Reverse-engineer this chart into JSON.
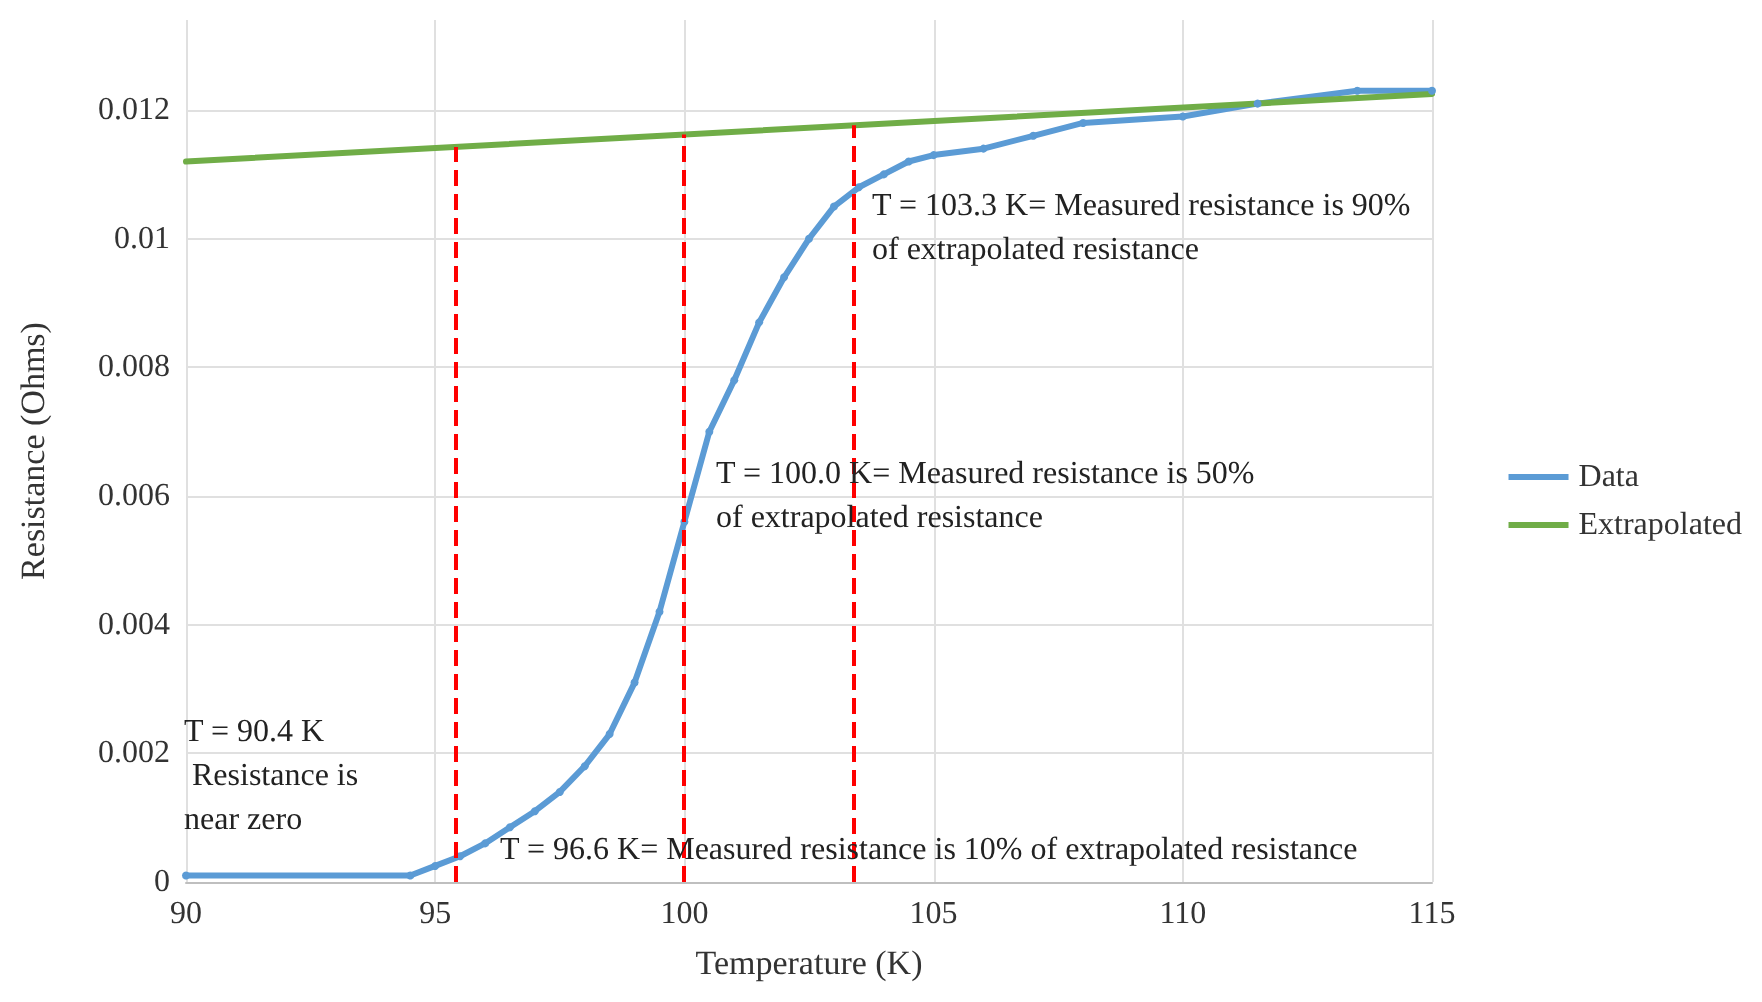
{
  "chart_data": {
    "type": "line",
    "xlabel": "Temperature (K)",
    "ylabel": "Resistance (Ohms)",
    "xlim": [
      90,
      115
    ],
    "xticks": [
      90,
      95,
      100,
      105,
      110,
      115
    ],
    "ylim": [
      0,
      0.0134
    ],
    "yticks": [
      0,
      0.002,
      0.004,
      0.006,
      0.008,
      0.01,
      0.012
    ],
    "grid": true,
    "legend": "right",
    "series": [
      {
        "name": "Data",
        "color": "#5b9bd5",
        "marker": "circle",
        "x": [
          90,
          94.5,
          95,
          95.5,
          96,
          96.5,
          97,
          97.5,
          98,
          98.5,
          99,
          99.5,
          100,
          100.5,
          101,
          101.5,
          102,
          102.5,
          103,
          103.5,
          104,
          104.5,
          105,
          106,
          107,
          108,
          110,
          111.5,
          113.5,
          115
        ],
        "values": [
          0.0001,
          0.0001,
          0.00025,
          0.0004,
          0.0006,
          0.00085,
          0.0011,
          0.0014,
          0.0018,
          0.0023,
          0.0031,
          0.0042,
          0.0056,
          0.007,
          0.0078,
          0.0087,
          0.0094,
          0.01,
          0.0105,
          0.0108,
          0.011,
          0.0112,
          0.0113,
          0.0114,
          0.0116,
          0.0118,
          0.0119,
          0.0121,
          0.0123,
          0.0123
        ]
      },
      {
        "name": "Extrapolated",
        "color": "#70ad47",
        "marker": "none",
        "x": [
          90,
          115
        ],
        "values": [
          0.0112,
          0.01225
        ]
      }
    ],
    "ref_lines": [
      {
        "axis": "x",
        "value": 95.4,
        "color": "#ff0000",
        "line_style": "dashed"
      },
      {
        "axis": "x",
        "value": 100,
        "color": "#ff0000",
        "line_style": "dashed"
      },
      {
        "axis": "x",
        "value": 103.4,
        "color": "#ff0000",
        "line_style": "dashed"
      }
    ],
    "annotations": [
      "T = 90.4 K\n Resistance is\nnear zero",
      "T = 96.6 K= Measured resistance is 10% of extrapolated resistance",
      "T = 100.0 K= Measured resistance is 50%\nof extrapolated resistance",
      "T = 103.3 K= Measured resistance is 90%\nof extrapolated resistance"
    ]
  }
}
